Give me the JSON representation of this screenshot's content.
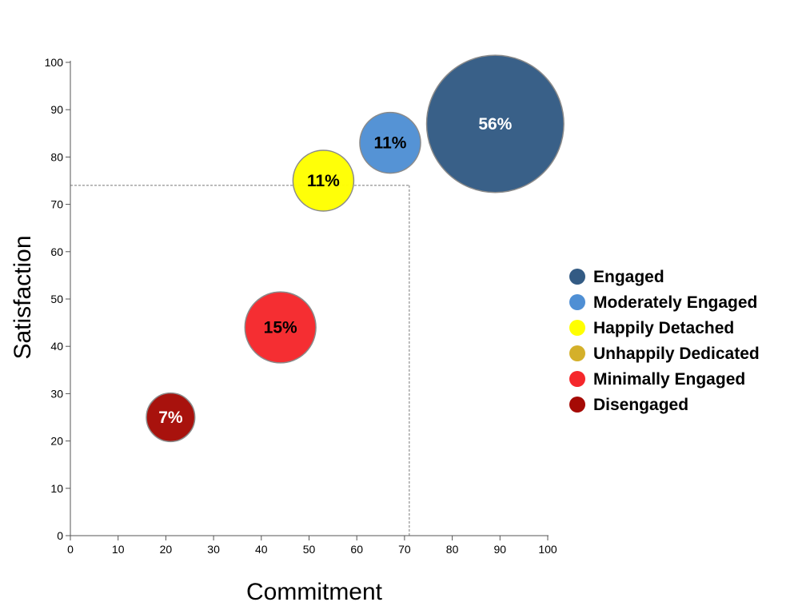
{
  "chart_data": {
    "type": "scatter",
    "variant": "bubble",
    "xlabel": "Commitment",
    "ylabel": "Satisfaction",
    "xlim": [
      0,
      100
    ],
    "ylim": [
      0,
      100
    ],
    "xticks": [
      0,
      10,
      20,
      30,
      40,
      50,
      60,
      70,
      80,
      90,
      100
    ],
    "yticks": [
      0,
      10,
      20,
      30,
      40,
      50,
      60,
      70,
      80,
      90,
      100
    ],
    "grid": false,
    "legend_position": "right",
    "reference_lines": {
      "x": 71,
      "y": 74,
      "style": "dashed"
    },
    "series": [
      {
        "name": "Engaged",
        "x": 89,
        "y": 87,
        "share_percent": 56,
        "label": "56%",
        "color": "#335b84",
        "label_color": "#ffffff"
      },
      {
        "name": "Moderately Engaged",
        "x": 67,
        "y": 83,
        "share_percent": 11,
        "label": "11%",
        "color": "#4f8fd4",
        "label_color": "#000000"
      },
      {
        "name": "Happily Detached",
        "x": 53,
        "y": 75,
        "share_percent": 11,
        "label": "11%",
        "color": "#ffff00",
        "label_color": "#000000"
      },
      {
        "name": "Unhappily Dedicated",
        "x": null,
        "y": null,
        "share_percent": null,
        "label": null,
        "color": "#d4b02a",
        "label_color": "#000000"
      },
      {
        "name": "Minimally Engaged",
        "x": 44,
        "y": 44,
        "share_percent": 15,
        "label": "15%",
        "color": "#f5272b",
        "label_color": "#000000"
      },
      {
        "name": "Disengaged",
        "x": 21,
        "y": 25,
        "share_percent": 7,
        "label": "7%",
        "color": "#a50a05",
        "label_color": "#ffffff"
      }
    ]
  }
}
